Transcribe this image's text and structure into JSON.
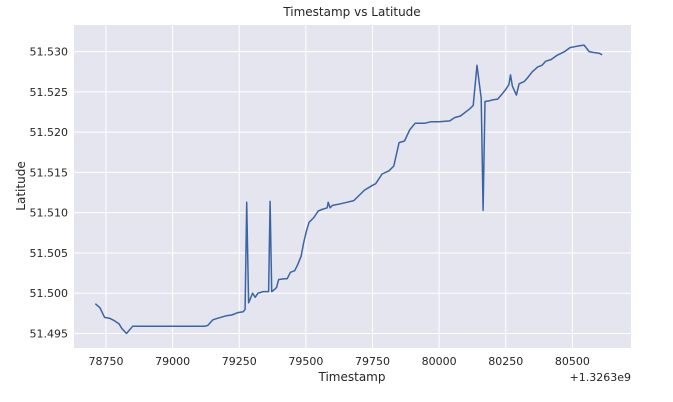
{
  "chart_data": {
    "type": "line",
    "title": "Timestamp vs Latitude",
    "xlabel": "Timestamp",
    "ylabel": "Latitude",
    "x_offset_label": "+1.3263e9",
    "xlim": [
      78630,
      80720
    ],
    "ylim": [
      51.4932,
      51.5333
    ],
    "x_ticks": [
      78750,
      79000,
      79250,
      79500,
      79750,
      80000,
      80250,
      80500
    ],
    "x_tick_labels": [
      "78750",
      "79000",
      "79250",
      "79500",
      "79750",
      "80000",
      "80250",
      "80500"
    ],
    "y_ticks": [
      51.495,
      51.5,
      51.505,
      51.51,
      51.515,
      51.52,
      51.525,
      51.53
    ],
    "y_tick_labels": [
      "51.495",
      "51.500",
      "51.505",
      "51.510",
      "51.515",
      "51.520",
      "51.525",
      "51.530"
    ],
    "grid": true,
    "colors": {
      "background": "#e5e5ef",
      "grid": "#ffffff",
      "line": "#3b64a3"
    },
    "series": [
      {
        "x": [
          78710,
          78727,
          78745,
          78763,
          78781,
          78799,
          78810,
          78827,
          78850,
          78950,
          79050,
          79120,
          79132,
          79151,
          79170,
          79201,
          79222,
          79245,
          79265,
          79272,
          79278,
          79285,
          79300,
          79310,
          79320,
          79340,
          79360,
          79366,
          79372,
          79380,
          79390,
          79398,
          79420,
          79430,
          79442,
          79458,
          79470,
          79482,
          79492,
          79502,
          79512,
          79530,
          79546,
          79560,
          79580,
          79584,
          79591,
          79600,
          79630,
          79656,
          79680,
          79720,
          79750,
          79762,
          79786,
          79812,
          79830,
          79850,
          79870,
          79890,
          79910,
          79925,
          79945,
          79970,
          79980,
          80000,
          80040,
          80058,
          80080,
          80115,
          80128,
          80142,
          80158,
          80165,
          80172,
          80190,
          80200,
          80220,
          80238,
          80250,
          80262,
          80268,
          80275,
          80290,
          80300,
          80320,
          80333,
          80350,
          80370,
          80386,
          80400,
          80420,
          80441,
          80459,
          80471,
          80491,
          80509,
          80524,
          80544,
          80563,
          80577,
          80600,
          80612
        ],
        "y": [
          51.4987,
          51.4982,
          51.497,
          51.4969,
          51.4966,
          51.4962,
          51.4956,
          51.495,
          51.4959,
          51.4959,
          51.4959,
          51.4959,
          51.496,
          51.4967,
          51.4969,
          51.4972,
          51.4973,
          51.4976,
          51.4977,
          51.498,
          51.5113,
          51.4988,
          51.5,
          51.4995,
          51.5,
          51.5002,
          51.5002,
          51.5114,
          51.5002,
          51.5004,
          51.5007,
          51.5017,
          51.5018,
          51.5018,
          51.5026,
          51.5028,
          51.5036,
          51.5046,
          51.5063,
          51.5077,
          51.5088,
          51.5094,
          51.5102,
          51.5104,
          51.5106,
          51.5113,
          51.5106,
          51.5109,
          51.5111,
          51.5113,
          51.5115,
          51.5128,
          51.5134,
          51.5136,
          51.5148,
          51.5152,
          51.5158,
          51.5187,
          51.5189,
          51.5203,
          51.5211,
          51.5211,
          51.5211,
          51.5213,
          51.5213,
          51.5213,
          51.5214,
          51.5218,
          51.522,
          51.5229,
          51.5233,
          51.5283,
          51.5242,
          51.5103,
          51.5238,
          51.5239,
          51.524,
          51.5241,
          51.5248,
          51.5253,
          51.5259,
          51.5271,
          51.5257,
          51.5246,
          51.526,
          51.5263,
          51.5268,
          51.5275,
          51.5281,
          51.5283,
          51.5288,
          51.529,
          51.5295,
          51.5298,
          51.53,
          51.5305,
          51.5306,
          51.5307,
          51.5308,
          51.53,
          51.5299,
          51.5298,
          51.5296
        ]
      }
    ]
  }
}
